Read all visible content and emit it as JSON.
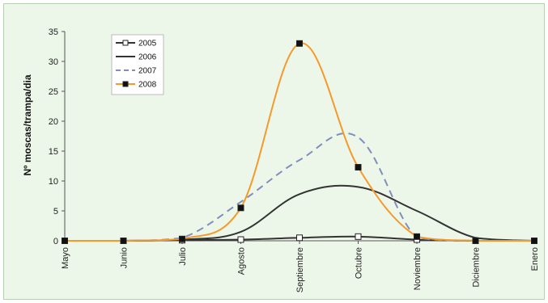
{
  "chart_data": {
    "type": "line",
    "title": "",
    "ylabel": "Nº moscas/trampa/dia",
    "xlabel": "",
    "ylim": [
      0,
      35
    ],
    "yticks": [
      0,
      5,
      10,
      15,
      20,
      25,
      30,
      35
    ],
    "categories": [
      "Mayo",
      "Junio",
      "Julio",
      "Agosto",
      "Septiembre",
      "Octubre",
      "Noviembre",
      "Diciembre",
      "Enero"
    ],
    "legend_position": "top-left",
    "grid": false,
    "series": [
      {
        "name": "2005",
        "color": "#333333",
        "style": "solid",
        "marker": "open-square",
        "values": [
          0,
          0,
          0.1,
          0.2,
          0.5,
          0.7,
          0.2,
          0,
          0
        ]
      },
      {
        "name": "2006",
        "color": "#333333",
        "style": "solid",
        "marker": "none",
        "values": [
          0,
          0,
          0.2,
          1.5,
          7.8,
          9.0,
          5.0,
          0.5,
          0
        ]
      },
      {
        "name": "2007",
        "color": "#7f8fba",
        "style": "dashed",
        "marker": "none",
        "values": [
          0,
          0,
          0.5,
          6.5,
          13.5,
          17.3,
          0.5,
          0,
          0
        ]
      },
      {
        "name": "2008",
        "color": "#f59a2a",
        "style": "solid",
        "marker": "filled-square",
        "values": [
          0,
          0,
          0.3,
          5.5,
          33,
          12.3,
          0.7,
          0,
          0
        ]
      }
    ]
  }
}
